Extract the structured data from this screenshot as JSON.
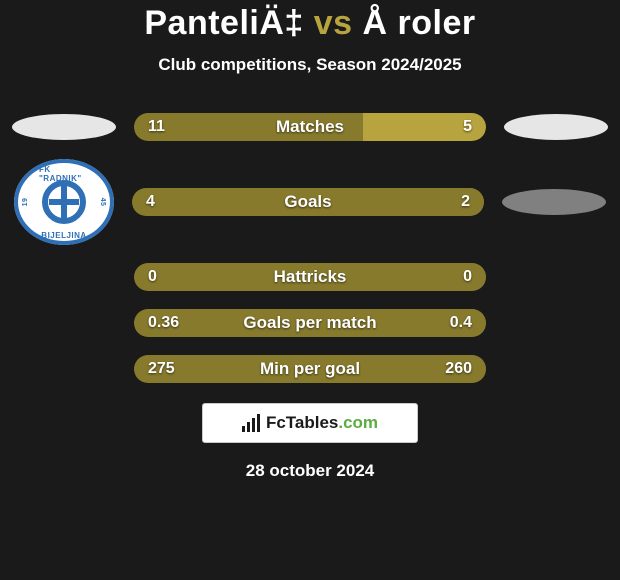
{
  "title_left": "PanteliÄ‡",
  "title_vs": " vs ",
  "title_right": "Å roler",
  "subtitle": "Club competitions, Season 2024/2025",
  "date": "28 october 2024",
  "brand_text_plain": "FcTables",
  "brand_text_green": ".com",
  "colors": {
    "background": "#1a1a1a",
    "left_oval": "#e6e6e6",
    "right_oval_1": "#e6e6e6",
    "right_oval_2": "#808080",
    "bar_left": "#877a2d",
    "bar_right": "#b8a43e",
    "bar_base_dark": "#5c5420",
    "text": "#ffffff",
    "badge_bg": "#ffffff",
    "badge_border": "#c9c9c9",
    "brand_dark": "#1a1a1a",
    "brand_green": "#5aad3e",
    "club_blue": "#2e6fb6"
  },
  "club_logo": {
    "top": "FK \"RADNIK\"",
    "bottom": "BIJELJINA",
    "year_l": "19",
    "year_r": "45"
  },
  "stats": [
    {
      "label": "Matches",
      "left_display": "11",
      "right_display": "5",
      "left_pct": 65,
      "right_pct": 35
    },
    {
      "label": "Goals",
      "left_display": "4",
      "right_display": "2",
      "left_pct": 100,
      "right_pct": 0
    },
    {
      "label": "Hattricks",
      "left_display": "0",
      "right_display": "0",
      "left_pct": 100,
      "right_pct": 0
    },
    {
      "label": "Goals per match",
      "left_display": "0.36",
      "right_display": "0.4",
      "left_pct": 100,
      "right_pct": 0
    },
    {
      "label": "Min per goal",
      "left_display": "275",
      "right_display": "260",
      "left_pct": 100,
      "right_pct": 0
    }
  ],
  "layout": {
    "pill_width": 352,
    "pill_height": 28,
    "pill_radius": 14,
    "title_fontsize": 34,
    "subtitle_fontsize": 17,
    "stat_fontsize": 17,
    "row_gap": 18
  }
}
